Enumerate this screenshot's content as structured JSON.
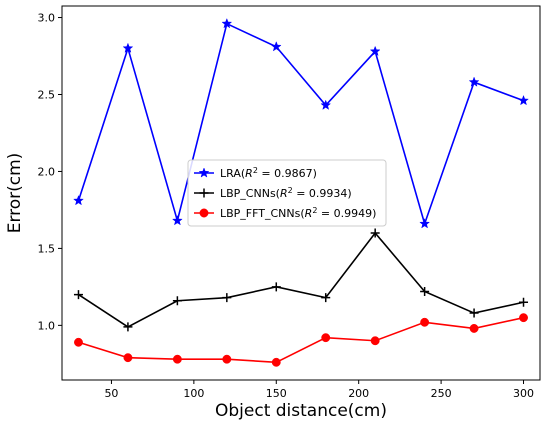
{
  "chart_data": {
    "type": "line",
    "title": "",
    "xlabel": "Object distance(cm)",
    "ylabel": "Error(cm)",
    "xlim": [
      20,
      310
    ],
    "ylim": [
      0.645,
      3.075
    ],
    "xticks": [
      50,
      100,
      150,
      200,
      250,
      300
    ],
    "xtick_labels": [
      "50",
      "100",
      "150",
      "200",
      "250",
      "300"
    ],
    "yticks": [
      1.0,
      1.5,
      2.0,
      2.5,
      3.0
    ],
    "ytick_labels": [
      "1.0",
      "1.5",
      "2.0",
      "2.5",
      "3.0"
    ],
    "grid": false,
    "legend_position": "center-left",
    "x": [
      30,
      60,
      90,
      120,
      150,
      180,
      210,
      240,
      270,
      300
    ],
    "series": [
      {
        "key": "lra",
        "legend_prefix": "LRA(",
        "legend_r2": "R",
        "legend_sup": "2",
        "legend_suffix": " = 0.9867)",
        "color": "#0000ff",
        "marker": "star",
        "values": [
          1.81,
          2.8,
          1.68,
          2.96,
          2.81,
          2.43,
          2.78,
          1.66,
          2.58,
          2.46
        ]
      },
      {
        "key": "cnn",
        "legend_prefix": "LBP_CNNs(",
        "legend_r2": "R",
        "legend_sup": "2",
        "legend_suffix": " = 0.9934)",
        "color": "#000000",
        "marker": "plus",
        "values": [
          1.2,
          0.99,
          1.16,
          1.18,
          1.25,
          1.18,
          1.6,
          1.22,
          1.08,
          1.15
        ]
      },
      {
        "key": "fft",
        "legend_prefix": "LBP_FFT_CNNs(",
        "legend_r2": "R",
        "legend_sup": "2",
        "legend_suffix": " = 0.9949)",
        "color": "#ff0000",
        "marker": "circle",
        "values": [
          0.89,
          0.79,
          0.78,
          0.78,
          0.76,
          0.92,
          0.9,
          1.02,
          0.98,
          1.05
        ]
      }
    ]
  }
}
